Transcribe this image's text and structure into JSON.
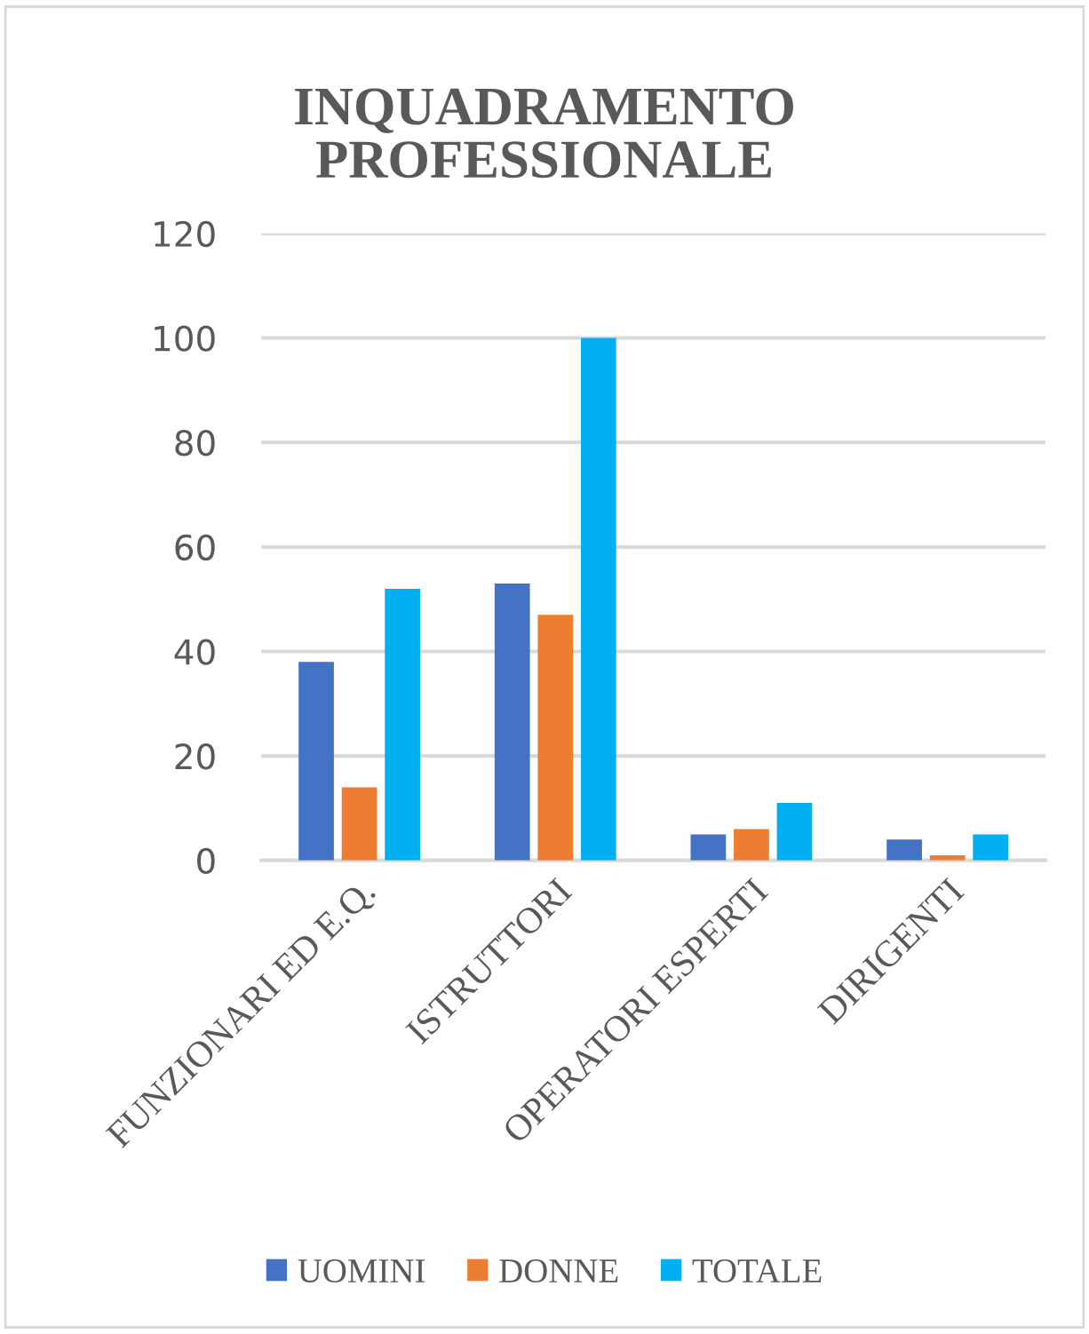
{
  "chart_data": {
    "type": "bar",
    "title": "INQUADRAMENTO\nPROFESSIONALE",
    "categories": [
      "FUNZIONARI ED E.Q.",
      "ISTRUTTORI",
      "OPERATORI ESPERTI",
      "DIRIGENTI"
    ],
    "series": [
      {
        "name": "UOMINI",
        "color": "#4472c4",
        "values": [
          38,
          53,
          5,
          4
        ]
      },
      {
        "name": "DONNE",
        "color": "#ed7d31",
        "values": [
          14,
          47,
          6,
          1
        ]
      },
      {
        "name": "TOTALE",
        "color": "#00b0f0",
        "values": [
          52,
          100,
          11,
          5
        ]
      }
    ],
    "ylim": [
      0,
      120
    ],
    "yticks": [
      0,
      20,
      40,
      60,
      80,
      100,
      120
    ],
    "grid": "y",
    "legend": "bottom"
  }
}
